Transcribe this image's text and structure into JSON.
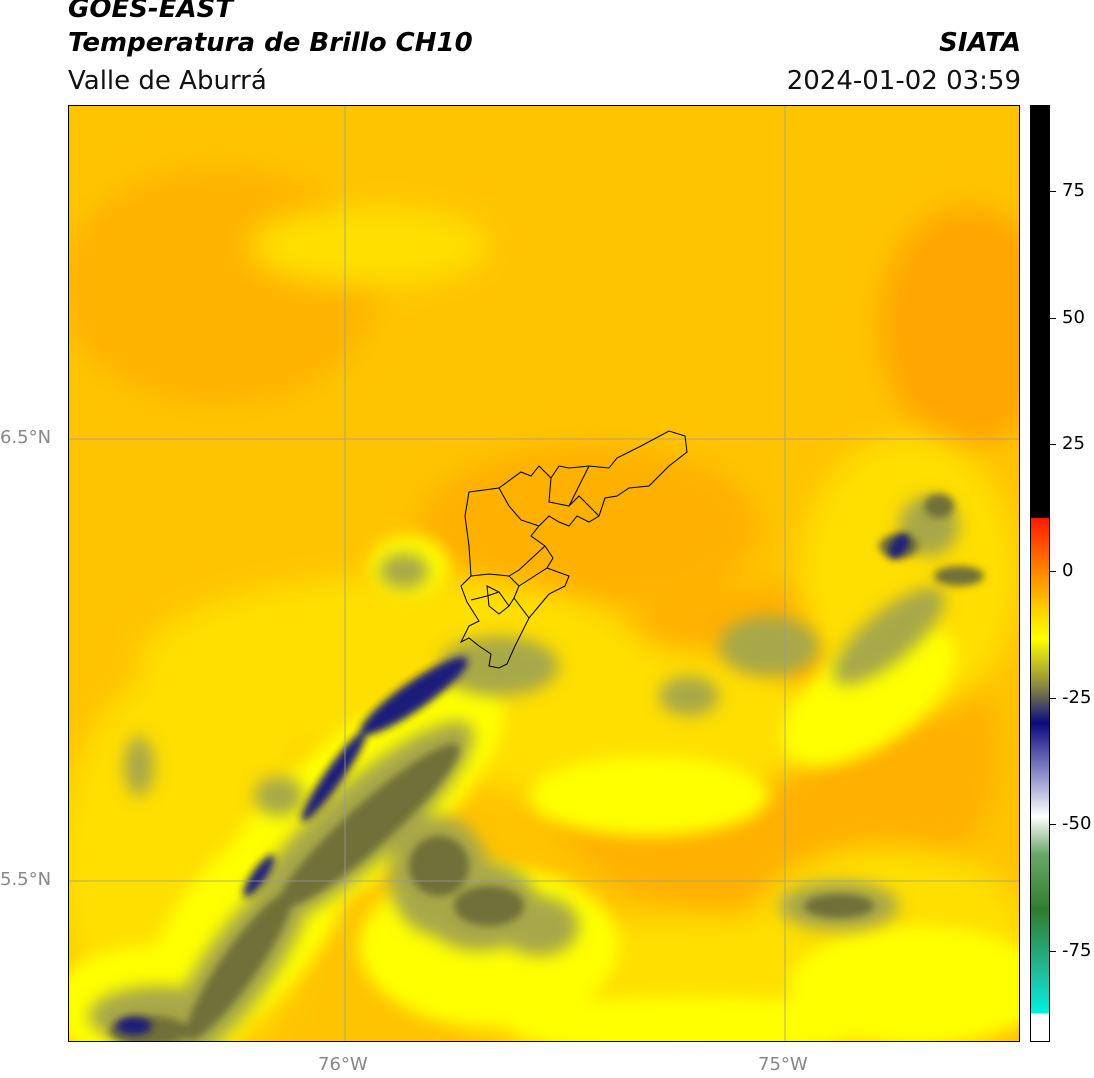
{
  "header": {
    "satellite": "GOES-EAST",
    "product": "Temperatura de Brillo CH10",
    "region": "Valle de Aburrá",
    "agency": "SIATA",
    "datetime": "2024-01-02 03:59"
  },
  "map": {
    "lat_labels": [
      "6.5°N",
      "5.5°N"
    ],
    "lon_labels": [
      "76°W",
      "75°W"
    ],
    "background_color": "#ffc800"
  },
  "colorbar": {
    "ticks": [
      "75",
      "50",
      "25",
      "0",
      "-25",
      "-50",
      "-75"
    ],
    "tick_values": [
      75,
      50,
      25,
      0,
      -25,
      -50,
      -75
    ],
    "range": [
      -93,
      92
    ],
    "colors": {
      "top": "#000000",
      "red": "#ff1a00",
      "orange": "#ff9a00",
      "yellow": "#ffff00",
      "olive": "#8a8a40",
      "navy": "#0a0a80",
      "white": "#ffffff",
      "green": "#2f7d2f",
      "cyan": "#00f0e0"
    }
  }
}
